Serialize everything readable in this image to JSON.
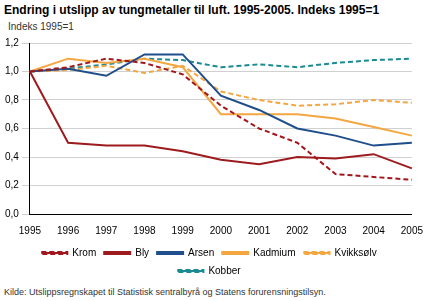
{
  "chart_data": {
    "type": "line",
    "title": "Endring i utslipp av tungmetaller til luft. 1995-2005. Indeks 1995=1",
    "y_label": "Indeks 1995=1",
    "source": "Kilde: Utslippsregnskapet til Statistisk sentralbyrå og Statens forurensningstilsyn.",
    "categories": [
      "1995",
      "1996",
      "1997",
      "1998",
      "1999",
      "2000",
      "2001",
      "2002",
      "2003",
      "2004",
      "2005"
    ],
    "series": [
      {
        "name": "Krom",
        "color": "#a3171c",
        "line_style": "dashed",
        "values": [
          1.0,
          1.03,
          1.09,
          1.06,
          0.98,
          0.76,
          0.6,
          0.5,
          0.28,
          0.26,
          0.24
        ]
      },
      {
        "name": "Bly",
        "color": "#9d1b1e",
        "line_style": "solid",
        "values": [
          1.0,
          0.5,
          0.48,
          0.48,
          0.44,
          0.38,
          0.35,
          0.4,
          0.39,
          0.42,
          0.32
        ]
      },
      {
        "name": "Arsen",
        "color": "#1f4e8c",
        "line_style": "solid",
        "values": [
          1.0,
          1.02,
          0.97,
          1.12,
          1.12,
          0.83,
          0.73,
          0.6,
          0.55,
          0.48,
          0.5
        ]
      },
      {
        "name": "Kadmium",
        "color": "#f4a640",
        "line_style": "solid",
        "values": [
          1.0,
          1.09,
          1.06,
          1.09,
          1.03,
          0.7,
          0.7,
          0.7,
          0.67,
          0.61,
          0.55
        ]
      },
      {
        "name": "Kvikksølv",
        "color": "#f4a640",
        "line_style": "dashed",
        "values": [
          1.0,
          1.01,
          1.04,
          0.99,
          1.04,
          0.86,
          0.8,
          0.76,
          0.77,
          0.8,
          0.78
        ]
      },
      {
        "name": "Kobber",
        "color": "#1c8a94",
        "line_style": "dashed",
        "values": [
          1.0,
          1.02,
          1.05,
          1.09,
          1.08,
          1.03,
          1.05,
          1.03,
          1.06,
          1.08,
          1.09
        ]
      }
    ],
    "ylim": [
      0,
      1.2
    ],
    "yticks": [
      {
        "value": 0,
        "label": "0,0"
      },
      {
        "value": 0.2,
        "label": "0,2"
      },
      {
        "value": 0.4,
        "label": "0,4"
      },
      {
        "value": 0.6,
        "label": "0,6"
      },
      {
        "value": 0.8,
        "label": "0,8"
      },
      {
        "value": 1.0,
        "label": "1,0"
      },
      {
        "value": 1.2,
        "label": "1,2"
      }
    ],
    "grid": true,
    "legend": "bottom"
  }
}
